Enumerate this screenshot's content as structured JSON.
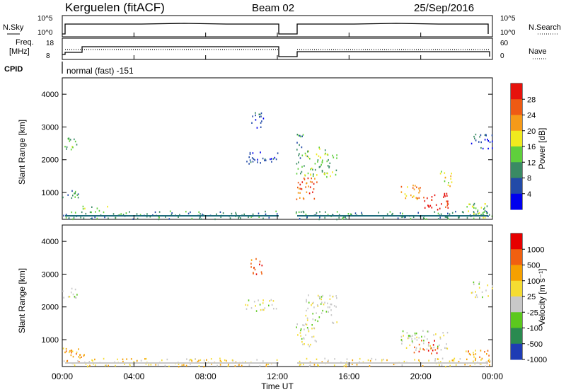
{
  "header": {
    "station": "Kerguelen (fitACF)",
    "beam": "Beam 02",
    "date": "25/Sep/2016"
  },
  "nsky": {
    "label": "N.Sky",
    "ticks": [
      "10^5",
      "10^0"
    ]
  },
  "nsearch": {
    "label": "N.Search",
    "ticks": [
      "10^5",
      "10^0"
    ]
  },
  "freq": {
    "label_line1": "Freq.",
    "label_line2": "[MHz]",
    "ticks": [
      "18",
      "8"
    ]
  },
  "nave": {
    "label": "Nave",
    "ticks": [
      "60",
      "0"
    ]
  },
  "cpid": {
    "label": "CPID",
    "value": "normal (fast) -151"
  },
  "time_axis": {
    "ticks": [
      "00:00",
      "04:00",
      "08:00",
      "12:00",
      "16:00",
      "20:00",
      "00:00"
    ],
    "label": "Time UT"
  },
  "colors": {
    "power": [
      "#0000ee",
      "#224aa8",
      "#3a8a64",
      "#5fcf3c",
      "#f0ea1e",
      "#f59a18",
      "#ee5a14",
      "#e6120c"
    ],
    "velocity": [
      "#e60000",
      "#f06010",
      "#f5a000",
      "#f5dc32",
      "#c8c8c8",
      "#5cc81e",
      "#2a8a50",
      "#1e3cb4"
    ]
  },
  "chart_data": [
    {
      "type": "heatmap",
      "title": "",
      "ylabel": "Slant Range [km]",
      "xlabel": "",
      "x": [
        "00:00",
        "04:00",
        "08:00",
        "12:00",
        "16:00",
        "20:00",
        "00:00"
      ],
      "y_ticks": [
        "1000",
        "2000",
        "3000",
        "4000"
      ],
      "xlim": [
        0,
        24
      ],
      "ylim": [
        180,
        4500
      ],
      "colorbar": {
        "label": "Power [dB]",
        "ticks": [
          "4",
          "8",
          "12",
          "16",
          "20",
          "24",
          "28"
        ],
        "range": [
          0,
          30
        ]
      },
      "data_gap_hours": [
        12.0,
        13.0
      ],
      "regions": [
        {
          "t": [
            0.0,
            0.8
          ],
          "r": [
            2300,
            2700
          ],
          "level": 3
        },
        {
          "t": [
            0.0,
            1.0
          ],
          "r": [
            800,
            1100
          ],
          "level": 2
        },
        {
          "t": [
            0.0,
            23.9
          ],
          "r": [
            200,
            450
          ],
          "level": 2
        },
        {
          "t": [
            1.0,
            2.5
          ],
          "r": [
            400,
            600
          ],
          "level": 3
        },
        {
          "t": [
            10.5,
            11.2
          ],
          "r": [
            3000,
            3500
          ],
          "level": 1
        },
        {
          "t": [
            10.2,
            12.0
          ],
          "r": [
            1900,
            2300
          ],
          "level": 1
        },
        {
          "t": [
            13.0,
            13.5
          ],
          "r": [
            1600,
            2800
          ],
          "level": 2
        },
        {
          "t": [
            13.0,
            14.2
          ],
          "r": [
            800,
            1500
          ],
          "level": 6
        },
        {
          "t": [
            13.5,
            15.3
          ],
          "r": [
            1500,
            2400
          ],
          "level": 3
        },
        {
          "t": [
            18.8,
            20.0
          ],
          "r": [
            800,
            1300
          ],
          "level": 5
        },
        {
          "t": [
            20.0,
            21.5
          ],
          "r": [
            500,
            1000
          ],
          "level": 7
        },
        {
          "t": [
            21.0,
            21.8
          ],
          "r": [
            1200,
            1700
          ],
          "level": 4
        },
        {
          "t": [
            22.5,
            24.0
          ],
          "r": [
            250,
            700
          ],
          "level": 3
        },
        {
          "t": [
            22.8,
            24.0
          ],
          "r": [
            2300,
            2800
          ],
          "level": 1
        }
      ]
    },
    {
      "type": "heatmap",
      "title": "",
      "ylabel": "Slant Range [km]",
      "xlabel": "Time UT",
      "x": [
        "00:00",
        "04:00",
        "08:00",
        "12:00",
        "16:00",
        "20:00",
        "00:00"
      ],
      "y_ticks": [
        "1000",
        "2000",
        "3000",
        "4000"
      ],
      "xlim": [
        0,
        24
      ],
      "ylim": [
        180,
        4500
      ],
      "colorbar": {
        "label": "Velocity [m s⁻¹]",
        "ticks": [
          "1000",
          "500",
          "100",
          "25",
          "-25",
          "-100",
          "-500",
          "-1000"
        ]
      },
      "data_gap_hours": [
        12.0,
        13.0
      ],
      "regions": [
        {
          "t": [
            0.0,
            0.8
          ],
          "r": [
            2300,
            2700
          ],
          "level": 4
        },
        {
          "t": [
            0.0,
            1.2
          ],
          "r": [
            300,
            800
          ],
          "level": 2
        },
        {
          "t": [
            0.0,
            24.0
          ],
          "r": [
            200,
            450
          ],
          "level": 3
        },
        {
          "t": [
            10.5,
            11.2
          ],
          "r": [
            3000,
            3500
          ],
          "level": 1
        },
        {
          "t": [
            10.2,
            12.0
          ],
          "r": [
            1900,
            2300
          ],
          "level": 4
        },
        {
          "t": [
            13.0,
            14.2
          ],
          "r": [
            800,
            1500
          ],
          "level": 4
        },
        {
          "t": [
            13.5,
            15.3
          ],
          "r": [
            1500,
            2400
          ],
          "level": 4
        },
        {
          "t": [
            18.8,
            21.5
          ],
          "r": [
            700,
            1300
          ],
          "level": 4
        },
        {
          "t": [
            19.5,
            21.0
          ],
          "r": [
            600,
            1000
          ],
          "level": 0
        },
        {
          "t": [
            22.5,
            24.0
          ],
          "r": [
            250,
            700
          ],
          "level": 2
        },
        {
          "t": [
            22.8,
            24.0
          ],
          "r": [
            2300,
            2800
          ],
          "level": 4
        }
      ]
    }
  ]
}
